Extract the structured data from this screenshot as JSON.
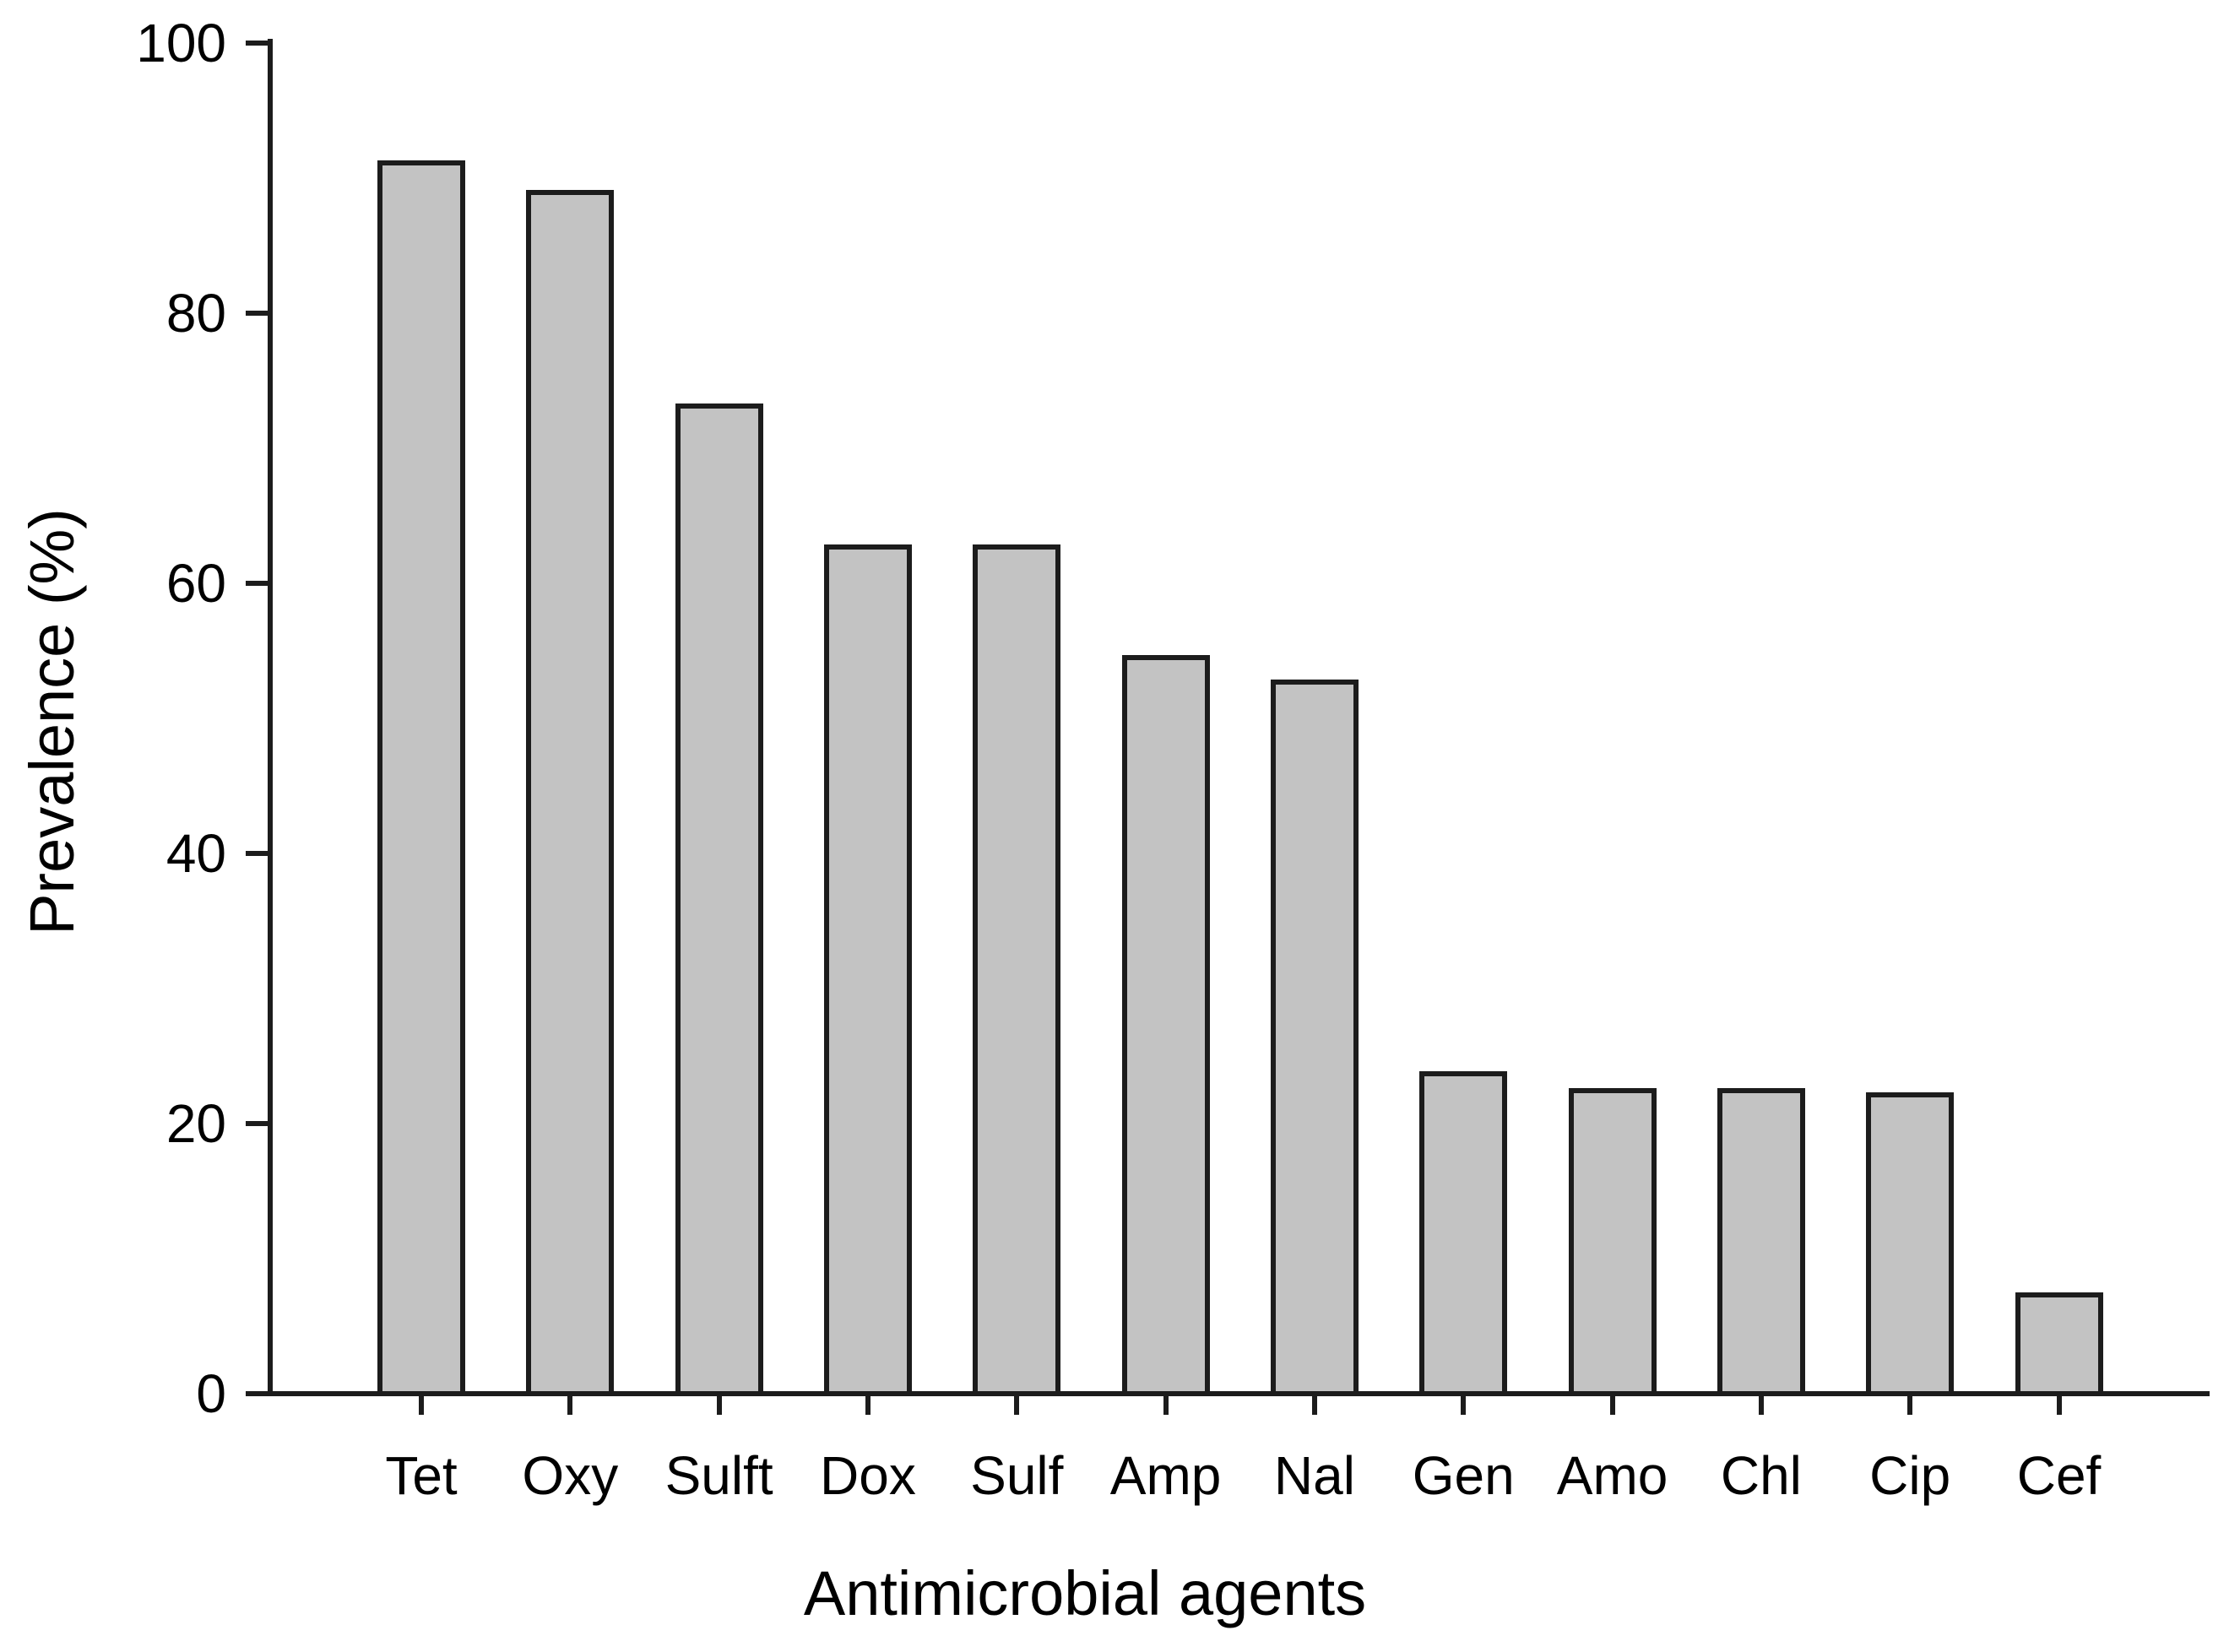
{
  "chart_data": {
    "type": "bar",
    "title": "",
    "categories": [
      "Tet",
      "Oxy",
      "Sulft",
      "Dox",
      "Sulf",
      "Amp",
      "Nal",
      "Gen",
      "Amo",
      "Chl",
      "Cip",
      "Cef"
    ],
    "values": [
      91.3,
      89.1,
      73.3,
      62.9,
      62.9,
      54.7,
      52.9,
      23.9,
      22.6,
      22.6,
      22.3,
      7.5
    ],
    "xlabel": "Antimicrobial agents",
    "ylabel": "Prevalence (%)",
    "ylim": [
      0,
      100
    ],
    "yticks": [
      0,
      20,
      40,
      60,
      80,
      100
    ],
    "grid": false,
    "legend": false,
    "colors": {
      "bar_fill": "#c3c3c3",
      "bar_border": "#1c1c1c",
      "axis": "#1c1c1c",
      "text": "#000000",
      "background": "#ffffff"
    }
  }
}
